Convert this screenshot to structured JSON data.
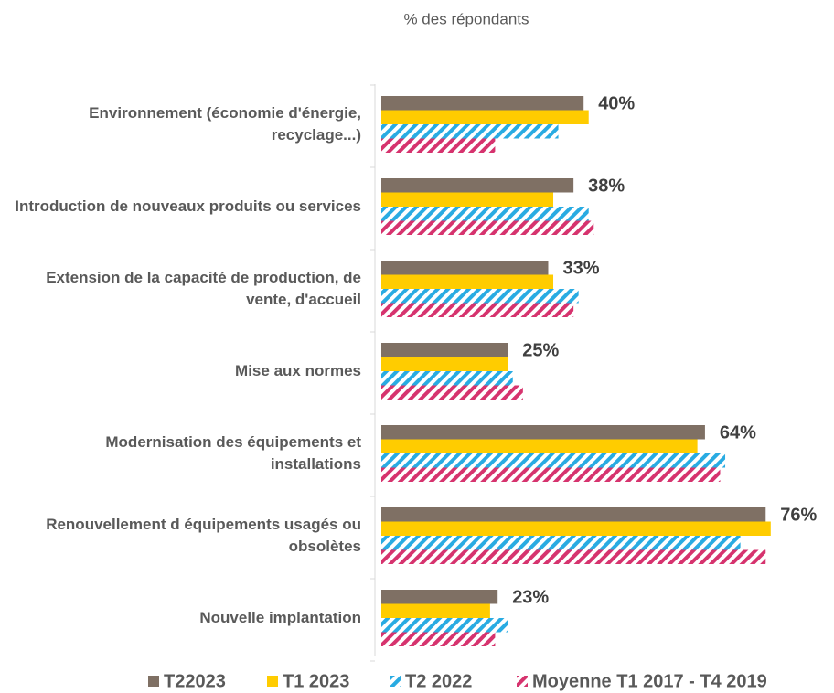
{
  "chart_data": {
    "type": "hbar",
    "subtitle": "% des répondants",
    "categories": [
      "Environnement (économie d'énergie, recyclage...)",
      "Introduction de nouveaux produits ou services",
      "Extension de la capacité de production, de vente, d'accueil",
      "Mise aux normes",
      "Modernisation des équipements et installations",
      "Renouvellement d équipements usagés ou obsolètes",
      "Nouvelle implantation"
    ],
    "series": [
      {
        "name": "T22023",
        "color": "#7f7064",
        "hatch": false,
        "values": [
          40,
          38,
          33,
          25,
          64,
          76,
          23
        ],
        "value_labels": [
          "40%",
          "38%",
          "33%",
          "25%",
          "64%",
          "76%",
          "23%"
        ]
      },
      {
        "name": "T1 2023",
        "color": "#ffcc00",
        "hatch": false,
        "values": [
          41,
          34,
          34,
          25,
          62.5,
          77,
          21.5
        ]
      },
      {
        "name": "T2 2022",
        "color": "#29abe2",
        "hatch": true,
        "values": [
          35,
          41,
          39,
          26,
          68,
          71,
          25
        ]
      },
      {
        "name": "Moyenne T1 2017 - T4 2019",
        "color": "#d6336e",
        "hatch": true,
        "values": [
          22.5,
          42,
          38,
          28,
          67,
          76,
          22.5
        ]
      }
    ]
  }
}
